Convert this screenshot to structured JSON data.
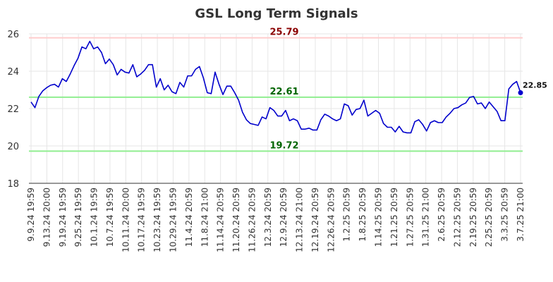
{
  "chart_data": {
    "type": "line",
    "title": "GSL Long Term Signals",
    "ylim": [
      18,
      26
    ],
    "yticks": [
      18,
      20,
      22,
      24,
      26
    ],
    "grid": true,
    "line_color": "#0000cc",
    "x_labels": [
      "9.9.24 19:59",
      "9.13.24 20:00",
      "9.19.24 19:59",
      "9.25.24 19:59",
      "10.1.24 19:59",
      "10.7.24 19:59",
      "10.11.24 20:00",
      "10.17.24 19:59",
      "10.23.24 19:59",
      "10.29.24 19:59",
      "11.4.24 20:59",
      "11.8.24 21:00",
      "11.14.24 20:59",
      "11.20.24 20:59",
      "11.26.24 20:59",
      "12.3.24 20:59",
      "12.9.24 20:59",
      "12.13.24 21:00",
      "12.19.24 20:59",
      "12.26.24 20:59",
      "1.2.25 20:59",
      "1.8.25 20:59",
      "1.14.25 20:59",
      "1.21.25 20:59",
      "1.27.25 20:59",
      "1.31.25 21:00",
      "2.6.25 20:59",
      "2.12.25 20:59",
      "2.19.25 20:59",
      "2.25.25 20:59",
      "3.3.25 20:59",
      "3.7.25 21:00"
    ],
    "ref_lines": [
      {
        "value": 25.79,
        "label": "25.79",
        "color": "#8b0000",
        "line_color": "#ffcccc"
      },
      {
        "value": 22.61,
        "label": "22.61",
        "color": "#006400",
        "line_color": "#90ee90"
      },
      {
        "value": 19.72,
        "label": "19.72",
        "color": "#006400",
        "line_color": "#90ee90"
      }
    ],
    "last_value_label": "22.85",
    "values": [
      22.35,
      22.05,
      22.65,
      22.95,
      23.12,
      23.25,
      23.3,
      23.15,
      23.6,
      23.45,
      23.85,
      24.3,
      24.7,
      25.3,
      25.2,
      25.6,
      25.2,
      25.3,
      25.0,
      24.4,
      24.65,
      24.35,
      23.8,
      24.1,
      23.95,
      23.9,
      24.35,
      23.7,
      23.85,
      24.05,
      24.35,
      24.35,
      23.15,
      23.6,
      23.0,
      23.25,
      22.9,
      22.8,
      23.4,
      23.15,
      23.75,
      23.75,
      24.1,
      24.25,
      23.65,
      22.85,
      22.8,
      23.95,
      23.3,
      22.75,
      23.2,
      23.2,
      22.85,
      22.45,
      21.8,
      21.4,
      21.2,
      21.15,
      21.1,
      21.55,
      21.45,
      22.05,
      21.9,
      21.6,
      21.6,
      21.9,
      21.35,
      21.45,
      21.35,
      20.9,
      20.9,
      20.95,
      20.85,
      20.85,
      21.4,
      21.7,
      21.6,
      21.45,
      21.35,
      21.45,
      22.25,
      22.15,
      21.65,
      21.95,
      22.0,
      22.45,
      21.6,
      21.75,
      21.9,
      21.75,
      21.2,
      21.0,
      21.0,
      20.75,
      21.05,
      20.75,
      20.7,
      20.7,
      21.3,
      21.4,
      21.15,
      20.8,
      21.25,
      21.35,
      21.25,
      21.25,
      21.55,
      21.75,
      22.0,
      22.05,
      22.2,
      22.3,
      22.6,
      22.65,
      22.25,
      22.3,
      22.0,
      22.35,
      22.1,
      21.85,
      21.35,
      21.35,
      23.05,
      23.3,
      23.45,
      22.85
    ]
  }
}
